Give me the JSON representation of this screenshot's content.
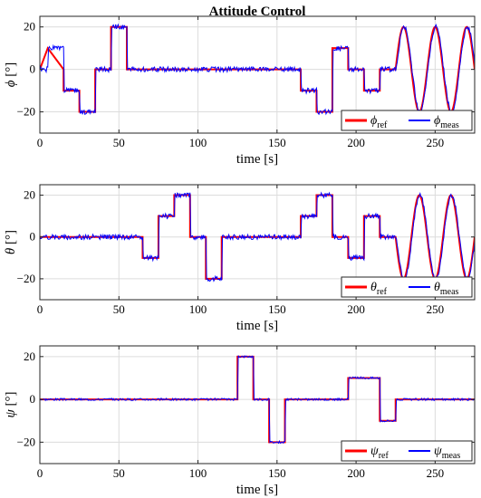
{
  "figure": {
    "title": "Attitude Control"
  },
  "colors": {
    "reference": "#ff0000",
    "measured": "#0000ff",
    "grid": "#dcdcdc",
    "axes": "#262626"
  },
  "chart_data": [
    {
      "type": "line",
      "title": "Attitude Control",
      "xlabel": "time [s]",
      "ylabel": "ϕ [°]",
      "ylabel_symbol": "ϕ",
      "ylabel_unit": "[°]",
      "xlim": [
        0,
        275
      ],
      "ylim": [
        -30,
        25
      ],
      "xticks": [
        0,
        50,
        100,
        150,
        200,
        250
      ],
      "yticks": [
        -20,
        0,
        20
      ],
      "grid": true,
      "legend_position": "bottom-right",
      "legend": [
        {
          "symbol": "ϕ",
          "sub": "ref"
        },
        {
          "symbol": "ϕ",
          "sub": "meas"
        }
      ],
      "series": [
        {
          "role": "reference",
          "steps": [
            [
              0,
              0
            ],
            [
              5,
              10
            ],
            [
              15,
              0
            ],
            [
              15,
              -10
            ],
            [
              25,
              -10
            ],
            [
              25,
              -20
            ],
            [
              35,
              -20
            ],
            [
              35,
              0
            ],
            [
              45,
              0
            ],
            [
              45,
              20
            ],
            [
              55,
              20
            ],
            [
              55,
              0
            ],
            [
              165,
              0
            ],
            [
              165,
              -10
            ],
            [
              175,
              -10
            ],
            [
              175,
              -20
            ],
            [
              185,
              -20
            ],
            [
              185,
              10
            ],
            [
              195,
              10
            ],
            [
              195,
              0
            ],
            [
              205,
              0
            ],
            [
              205,
              -10
            ],
            [
              215,
              -10
            ],
            [
              215,
              0
            ],
            [
              225,
              0
            ]
          ],
          "sine": {
            "start": 225,
            "end": 275,
            "amplitude": 20,
            "period": 20
          }
        },
        {
          "role": "measured",
          "noise": 1.2,
          "seed": 1
        }
      ]
    },
    {
      "type": "line",
      "xlabel": "time [s]",
      "ylabel": "θ [°]",
      "ylabel_symbol": "θ",
      "ylabel_unit": "[°]",
      "xlim": [
        0,
        275
      ],
      "ylim": [
        -30,
        25
      ],
      "xticks": [
        0,
        50,
        100,
        150,
        200,
        250
      ],
      "yticks": [
        -20,
        0,
        20
      ],
      "grid": true,
      "legend_position": "bottom-right",
      "legend": [
        {
          "symbol": "θ",
          "sub": "ref"
        },
        {
          "symbol": "θ",
          "sub": "meas"
        }
      ],
      "series": [
        {
          "role": "reference",
          "steps": [
            [
              0,
              0
            ],
            [
              65,
              0
            ],
            [
              65,
              -10
            ],
            [
              75,
              -10
            ],
            [
              75,
              10
            ],
            [
              85,
              10
            ],
            [
              85,
              20
            ],
            [
              95,
              20
            ],
            [
              95,
              0
            ],
            [
              105,
              0
            ],
            [
              105,
              -20
            ],
            [
              115,
              -20
            ],
            [
              115,
              0
            ],
            [
              165,
              0
            ],
            [
              165,
              10
            ],
            [
              175,
              10
            ],
            [
              175,
              20
            ],
            [
              185,
              20
            ],
            [
              185,
              0
            ],
            [
              195,
              0
            ],
            [
              195,
              -10
            ],
            [
              205,
              -10
            ],
            [
              205,
              10
            ],
            [
              215,
              10
            ],
            [
              215,
              0
            ],
            [
              225,
              0
            ]
          ],
          "sine": {
            "start": 225,
            "end": 275,
            "amplitude": 20,
            "period": 20,
            "phase": 180
          }
        },
        {
          "role": "measured",
          "noise": 1.2,
          "seed": 2
        }
      ]
    },
    {
      "type": "line",
      "xlabel": "time [s]",
      "ylabel": "ψ [°]",
      "ylabel_symbol": "ψ",
      "ylabel_unit": "[°]",
      "xlim": [
        0,
        275
      ],
      "ylim": [
        -30,
        25
      ],
      "xticks": [
        0,
        50,
        100,
        150,
        200,
        250
      ],
      "yticks": [
        -20,
        0,
        20
      ],
      "grid": true,
      "legend_position": "bottom-right",
      "legend": [
        {
          "symbol": "ψ",
          "sub": "ref"
        },
        {
          "symbol": "ψ",
          "sub": "meas"
        }
      ],
      "series": [
        {
          "role": "reference",
          "steps": [
            [
              0,
              0
            ],
            [
              125,
              0
            ],
            [
              125,
              20
            ],
            [
              135,
              20
            ],
            [
              135,
              0
            ],
            [
              145,
              0
            ],
            [
              145,
              -20
            ],
            [
              155,
              -20
            ],
            [
              155,
              0
            ],
            [
              195,
              0
            ],
            [
              195,
              10
            ],
            [
              215,
              10
            ],
            [
              215,
              -10
            ],
            [
              225,
              -10
            ],
            [
              225,
              0
            ],
            [
              275,
              0
            ]
          ]
        },
        {
          "role": "measured",
          "noise": 0.5,
          "seed": 3
        }
      ]
    }
  ]
}
